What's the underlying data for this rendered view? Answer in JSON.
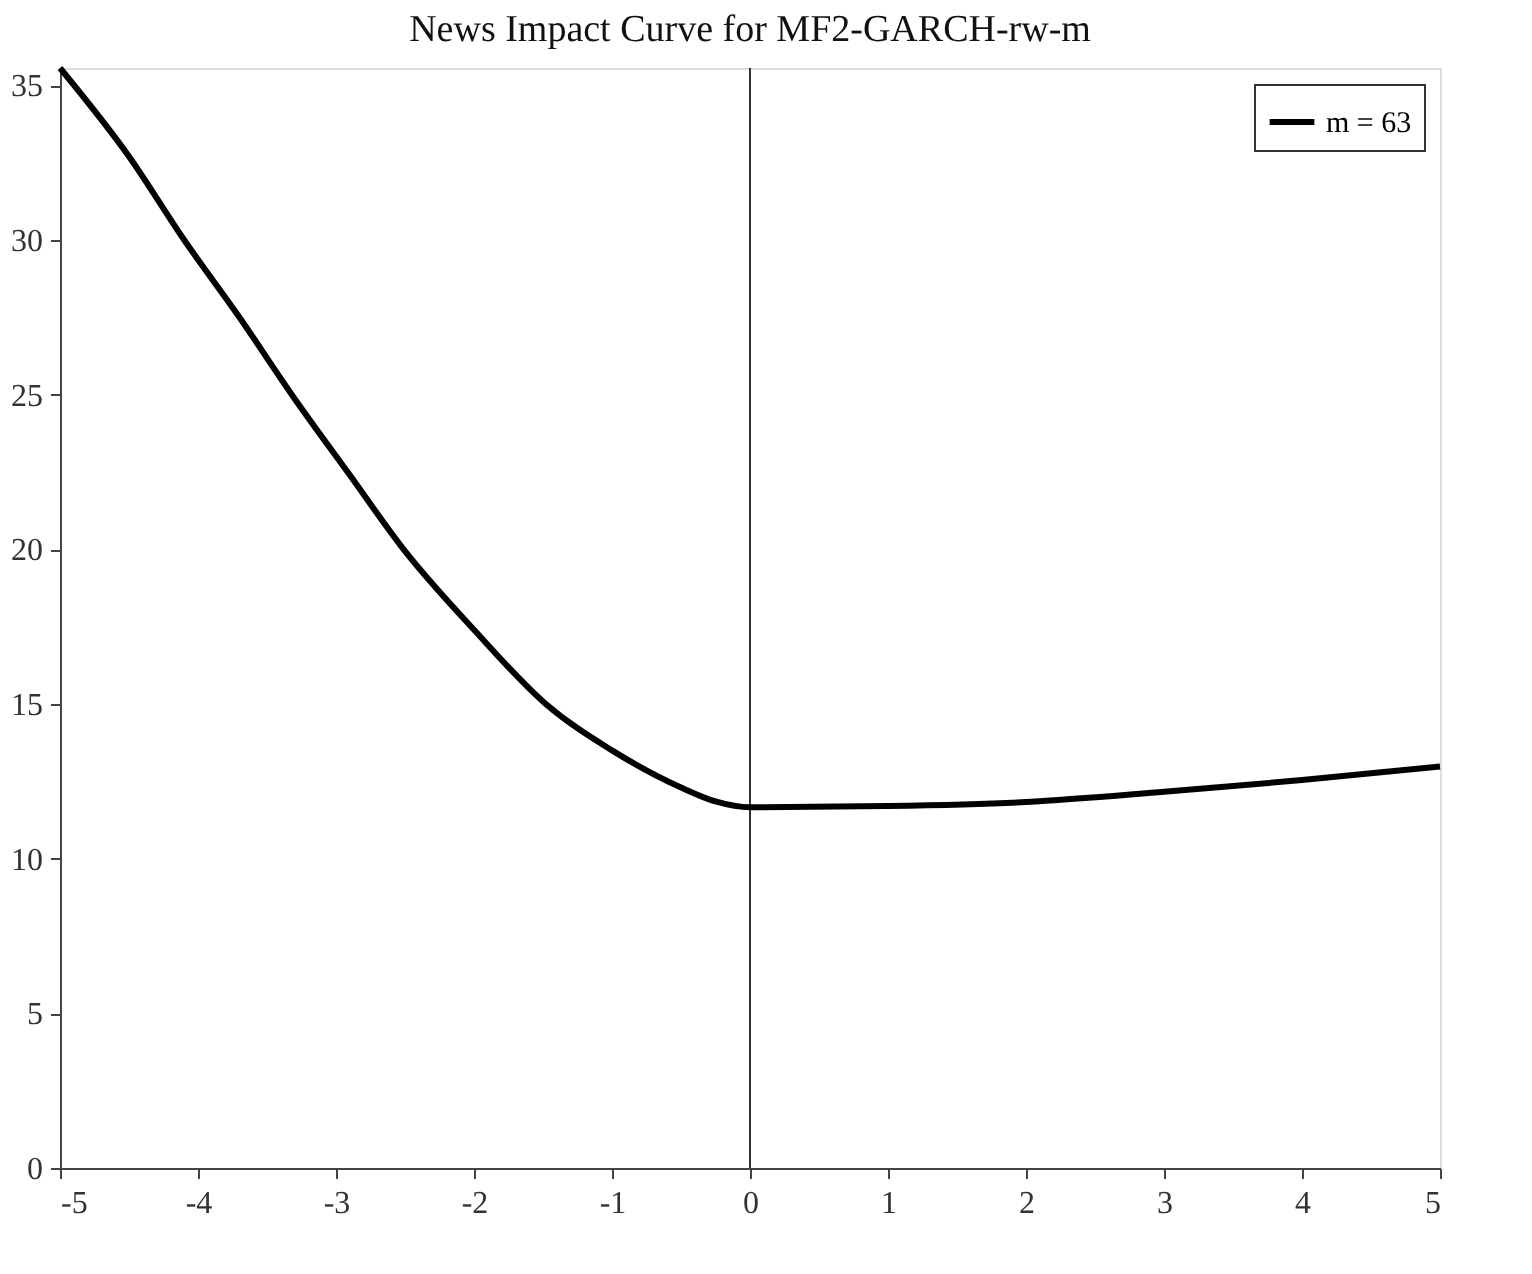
{
  "chart_data": {
    "type": "line",
    "title": "News Impact Curve for MF2-GARCH-rw-m",
    "x": [
      -5,
      -4.5,
      -4.1,
      -3.7,
      -3.32,
      -2.9,
      -2.51,
      -2,
      -1.48,
      -1,
      -0.5,
      -0.25,
      0,
      1,
      2,
      3,
      4,
      5
    ],
    "series": [
      {
        "name": "m = 63",
        "color": "#000000",
        "values": [
          35.56,
          32.7,
          30,
          27.5,
          25,
          22.4,
          20,
          17.4,
          15,
          13.5,
          12.3,
          11.85,
          11.66,
          11.7,
          11.83,
          12.16,
          12.54,
          12.98
        ]
      }
    ],
    "xlim": [
      -5,
      5
    ],
    "xticks": [
      -5,
      -4,
      -3,
      -2,
      -1,
      0,
      1,
      2,
      3,
      4,
      5
    ],
    "ylim": [
      0,
      35.56
    ],
    "yticks": [
      0,
      5,
      10,
      15,
      20,
      25,
      30,
      35
    ],
    "ref_lines": [
      {
        "axis": "x",
        "value": 0,
        "color": "#000000"
      }
    ],
    "grid": false,
    "legend": "top right",
    "line_style": "solid",
    "marker": "none"
  }
}
